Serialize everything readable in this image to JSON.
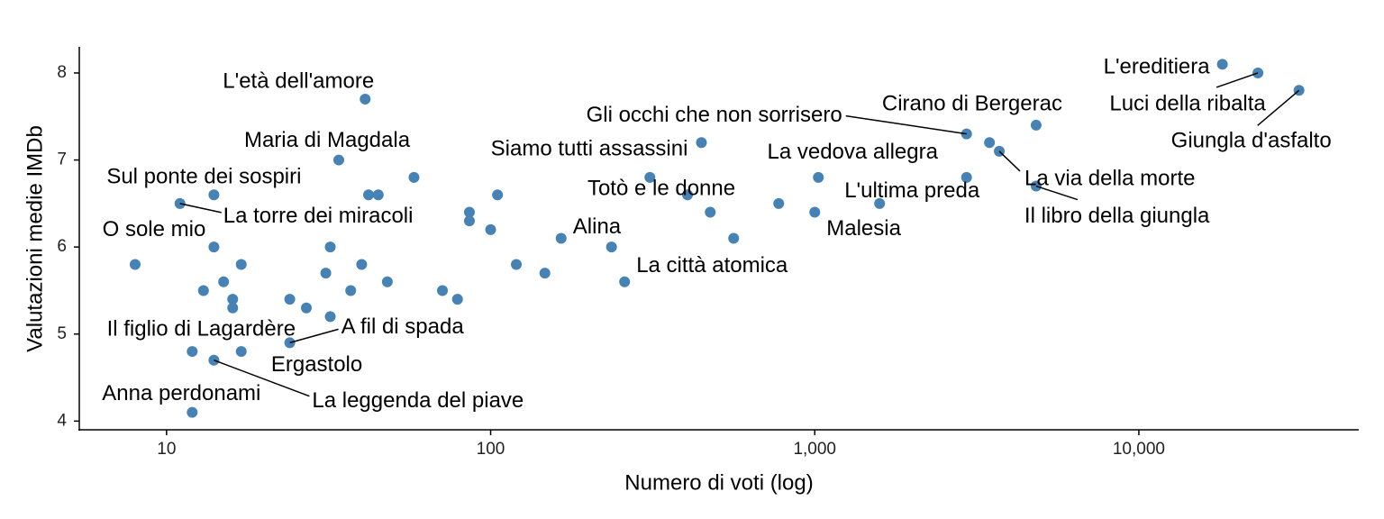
{
  "chart_data": {
    "type": "scatter",
    "x_label": "Numero di voti (log)",
    "y_label": "Valutazioni medie IMDb",
    "x": [
      8,
      11,
      14,
      14,
      13,
      15,
      16,
      16,
      17,
      12,
      14,
      17,
      12,
      24,
      27,
      24,
      32,
      32,
      31,
      34,
      40,
      37,
      41,
      42,
      45,
      48,
      58,
      71,
      79,
      86,
      86,
      100,
      105,
      120,
      147,
      165,
      236,
      259,
      310,
      405,
      447,
      476,
      562,
      774,
      1026,
      1000,
      1585,
      2940,
      2940,
      3460,
      3710,
      4820,
      4820,
      18100,
      23300,
      31200
    ],
    "y": [
      5.8,
      6.5,
      6.6,
      6.0,
      5.5,
      5.6,
      5.4,
      5.3,
      5.8,
      4.8,
      4.7,
      4.8,
      4.1,
      5.4,
      5.3,
      4.9,
      5.2,
      6.0,
      5.7,
      7.0,
      5.8,
      5.5,
      7.7,
      6.6,
      6.6,
      5.6,
      6.8,
      5.5,
      5.4,
      6.4,
      6.3,
      6.2,
      6.6,
      5.8,
      5.7,
      6.1,
      6.0,
      5.6,
      6.8,
      6.6,
      7.2,
      6.4,
      6.1,
      6.5,
      6.8,
      6.4,
      6.5,
      7.3,
      6.8,
      7.2,
      7.1,
      7.4,
      6.7,
      8.1,
      8.0,
      7.8
    ],
    "labels": [
      "O sole mio",
      "La torre dei miracoli",
      "Sul ponte dei sospiri",
      null,
      null,
      null,
      null,
      null,
      null,
      "Il figlio di Lagardère",
      "La leggenda del piave",
      null,
      "Anna perdonami",
      null,
      null,
      "A fil di spada",
      "Ergastolo",
      null,
      null,
      "Maria di Magdala",
      null,
      null,
      "L'età dell'amore",
      null,
      null,
      null,
      null,
      null,
      null,
      null,
      null,
      null,
      null,
      null,
      null,
      "Alina",
      null,
      "La città atomica",
      null,
      "Totò e le donne",
      "Siamo tutti assassini",
      null,
      null,
      null,
      "La vedova allegra",
      "Malesia",
      "L'ultima preda",
      "Gli occhi che non sorrisero",
      null,
      null,
      "La via della morte",
      "Cirano di Bergerac",
      "Il libro della giungla",
      "L'ereditiera",
      "Luci della ribalta",
      "Giungla d'asfalto"
    ],
    "color": "#4682b4",
    "xscale": "log",
    "xlim": [
      5.38,
      47700
    ],
    "xticks": [
      10,
      100,
      {
        "value": 1000,
        "label": "1,000"
      },
      {
        "value": 10000,
        "label": "10,000"
      }
    ],
    "ylim": [
      3.9,
      8.3
    ],
    "yticks": [
      4,
      5,
      6,
      7,
      8
    ],
    "grid": false
  }
}
